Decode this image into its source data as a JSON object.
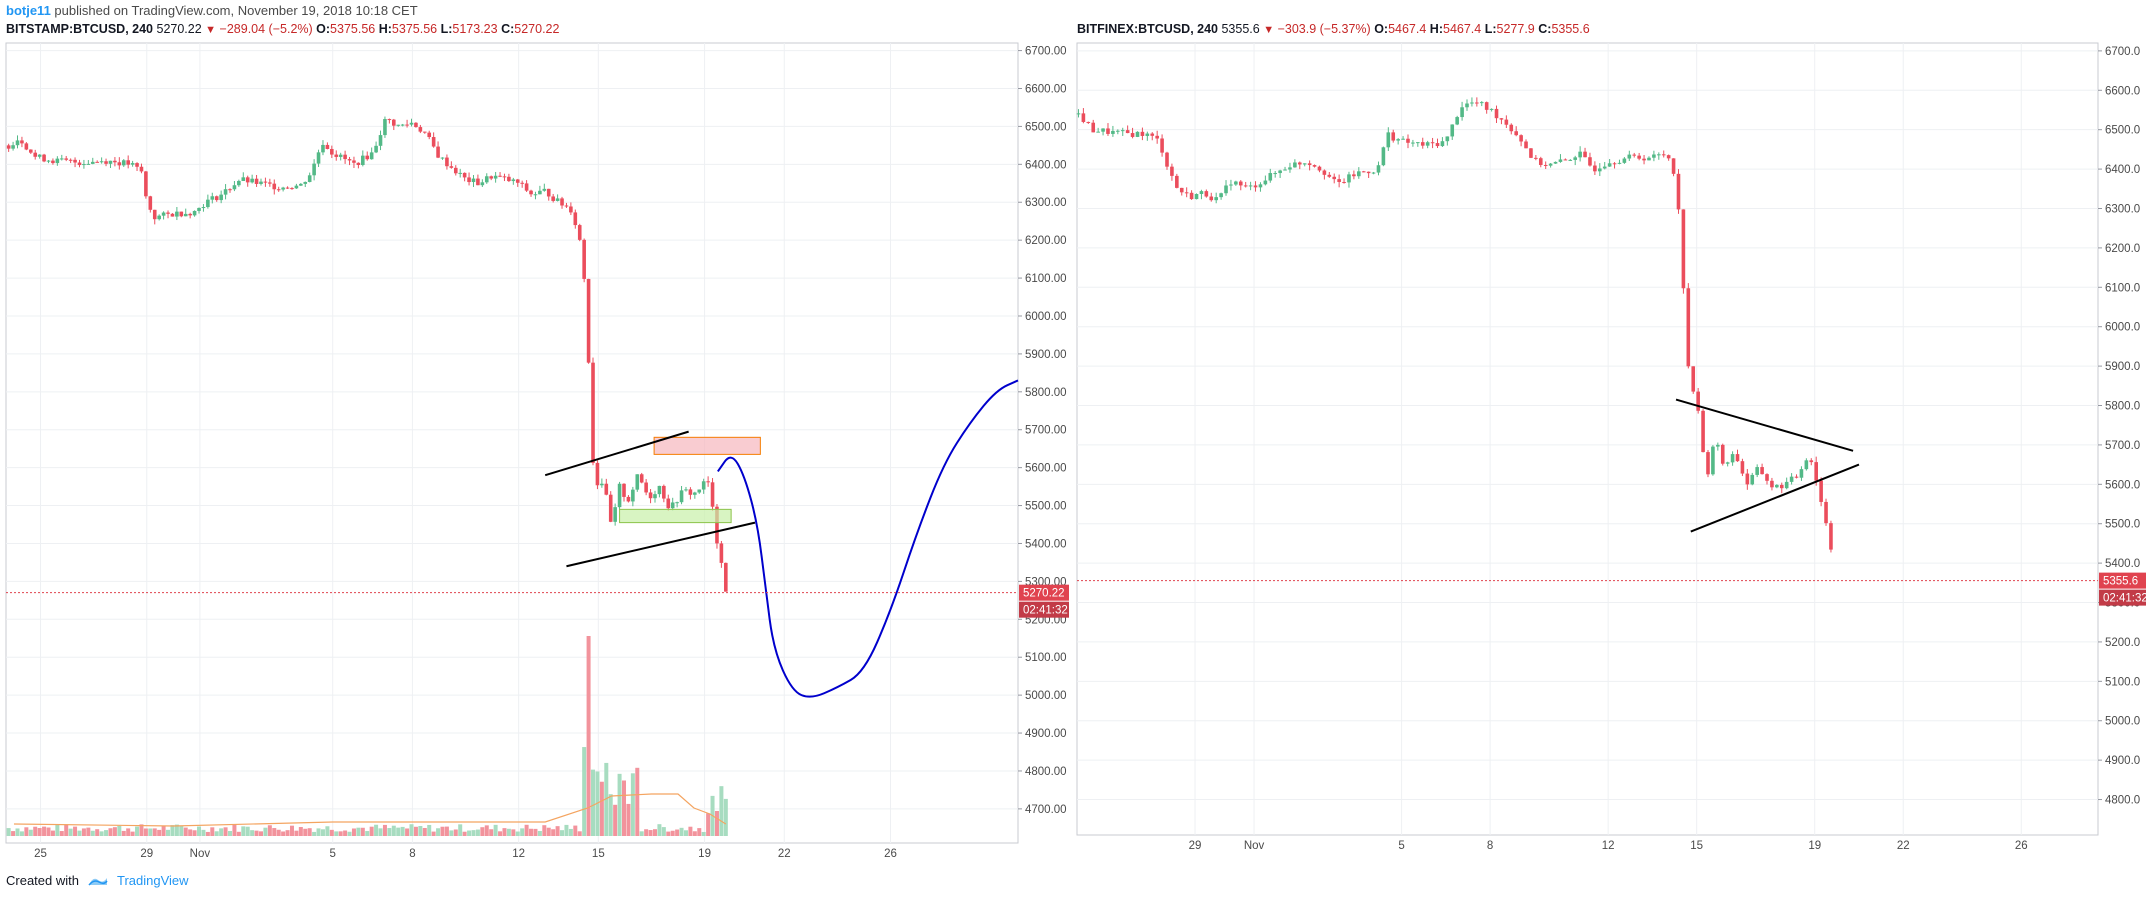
{
  "publish": {
    "author": "botje11",
    "text": " published on TradingView.com, November 19, 2018 10:18 CET"
  },
  "footer": {
    "created_with": "Created with",
    "brand": "TradingView"
  },
  "colors": {
    "up": "#53b987",
    "down": "#eb4d5c",
    "grid": "#eef0f3",
    "axis_text": "#4a4a4a",
    "pattern_line": "#000000",
    "projection": "#0000cc",
    "price_label_bg": "#e0434f",
    "volume_ma": "#f4a460",
    "zone_red_fill": "#f7b6bd",
    "zone_red_border": "#f57c00",
    "zone_green_fill": "#c8f0a8",
    "zone_green_border": "#8bc34a"
  },
  "chart_data": [
    {
      "type": "candlestick",
      "header": {
        "symbol": "BITSTAMP:BTCUSD, 240",
        "last": "5270.22",
        "arrow": "▼",
        "change": "−289.04 (−5.2%)",
        "o_label": "O:",
        "o": "5375.56",
        "h_label": "H:",
        "h": "5375.56",
        "l_label": "L:",
        "l": "5173.23",
        "c_label": "C:",
        "c": "5270.22"
      },
      "y_ticks": [
        "6700.00",
        "6600.00",
        "6500.00",
        "6400.00",
        "6300.00",
        "6200.00",
        "6100.00",
        "6000.00",
        "5900.00",
        "5800.00",
        "5700.00",
        "5600.00",
        "5500.00",
        "5400.00",
        "5300.00",
        "5200.00",
        "5100.00",
        "5000.00",
        "4900.00",
        "4800.00",
        "4700.00"
      ],
      "x_ticks": [
        {
          "label": "25",
          "day": 25
        },
        {
          "label": "29",
          "day": 29
        },
        {
          "label": "Nov",
          "day": 31
        },
        {
          "label": "5",
          "day": 36
        },
        {
          "label": "8",
          "day": 39
        },
        {
          "label": "12",
          "day": 43
        },
        {
          "label": "15",
          "day": 46
        },
        {
          "label": "19",
          "day": 50
        },
        {
          "label": "22",
          "day": 53
        },
        {
          "label": "26",
          "day": 57
        }
      ],
      "x_range": [
        23.7,
        61.8
      ],
      "ylim": [
        4610,
        6720
      ],
      "last_price_label": "5270.22",
      "countdown_label": "02:41:32",
      "last_price": 5270.22,
      "price_path": [
        [
          23.8,
          6450
        ],
        [
          24.2,
          6470
        ],
        [
          24.8,
          6420
        ],
        [
          25.5,
          6410
        ],
        [
          26.5,
          6405
        ],
        [
          27.5,
          6410
        ],
        [
          28.4,
          6400
        ],
        [
          28.8,
          6380
        ],
        [
          29.0,
          6300
        ],
        [
          29.3,
          6260
        ],
        [
          30.0,
          6270
        ],
        [
          30.8,
          6275
        ],
        [
          31.2,
          6300
        ],
        [
          31.8,
          6320
        ],
        [
          32.5,
          6360
        ],
        [
          33.2,
          6350
        ],
        [
          34.0,
          6340
        ],
        [
          34.8,
          6345
        ],
        [
          35.2,
          6380
        ],
        [
          35.6,
          6460
        ],
        [
          36.0,
          6430
        ],
        [
          36.8,
          6400
        ],
        [
          37.5,
          6430
        ],
        [
          38.0,
          6520
        ],
        [
          38.5,
          6500
        ],
        [
          39.0,
          6510
        ],
        [
          39.5,
          6480
        ],
        [
          40.0,
          6420
        ],
        [
          40.5,
          6390
        ],
        [
          41.0,
          6360
        ],
        [
          41.5,
          6350
        ],
        [
          42.0,
          6370
        ],
        [
          42.5,
          6360
        ],
        [
          43.0,
          6350
        ],
        [
          43.5,
          6320
        ],
        [
          44.0,
          6330
        ],
        [
          44.5,
          6300
        ],
        [
          45.0,
          6280
        ],
        [
          45.3,
          6200
        ],
        [
          45.55,
          6050
        ],
        [
          45.7,
          5750
        ],
        [
          45.85,
          5550
        ],
        [
          46.1,
          5570
        ],
        [
          46.3,
          5520
        ],
        [
          46.5,
          5440
        ],
        [
          46.8,
          5550
        ],
        [
          47.1,
          5510
        ],
        [
          47.5,
          5580
        ],
        [
          47.9,
          5520
        ],
        [
          48.3,
          5550
        ],
        [
          48.7,
          5490
        ],
        [
          49.2,
          5540
        ],
        [
          49.6,
          5530
        ],
        [
          50.0,
          5560
        ],
        [
          50.2,
          5560
        ],
        [
          50.4,
          5420
        ],
        [
          50.6,
          5375
        ],
        [
          50.8,
          5270
        ]
      ],
      "volume": {
        "note": "relative volume bars",
        "max_spike_day": 45.6
      },
      "pattern_lines": [
        {
          "x1": 44.0,
          "y1": 5580,
          "x2": 49.4,
          "y2": 5695
        },
        {
          "x1": 44.8,
          "y1": 5340,
          "x2": 51.9,
          "y2": 5455
        }
      ],
      "zones": [
        {
          "kind": "resistance",
          "x1": 48.1,
          "x2": 52.1,
          "y1": 5635,
          "y2": 5680
        },
        {
          "kind": "support",
          "x1": 46.8,
          "x2": 51.0,
          "y1": 5455,
          "y2": 5490
        }
      ],
      "projection": [
        [
          50.5,
          5590
        ],
        [
          51.0,
          5640
        ],
        [
          51.5,
          5580
        ],
        [
          52.0,
          5450
        ],
        [
          52.3,
          5280
        ],
        [
          52.6,
          5120
        ],
        [
          53.3,
          5010
        ],
        [
          54.0,
          4990
        ],
        [
          55.0,
          5020
        ],
        [
          56.0,
          5060
        ],
        [
          57.0,
          5220
        ],
        [
          58.0,
          5430
        ],
        [
          59.0,
          5610
        ],
        [
          60.0,
          5720
        ],
        [
          61.0,
          5805
        ],
        [
          61.8,
          5830
        ]
      ]
    },
    {
      "type": "candlestick",
      "header": {
        "symbol": "BITFINEX:BTCUSD, 240",
        "last": "5355.6",
        "arrow": "▼",
        "change": "−303.9 (−5.37%)",
        "o_label": "O:",
        "o": "5467.4",
        "h_label": "H:",
        "h": "5467.4",
        "l_label": "L:",
        "l": "5277.9",
        "c_label": "C:",
        "c": "5355.6"
      },
      "y_ticks": [
        "6700.0",
        "6600.0",
        "6500.0",
        "6400.0",
        "6300.0",
        "6200.0",
        "6100.0",
        "6000.0",
        "5900.0",
        "5800.0",
        "5700.0",
        "5600.0",
        "5500.0",
        "5400.0",
        "5300.0",
        "5200.0",
        "5100.0",
        "5000.0",
        "4900.0",
        "4800.0"
      ],
      "x_ticks": [
        {
          "label": "29",
          "day": 29
        },
        {
          "label": "Nov",
          "day": 31
        },
        {
          "label": "5",
          "day": 36
        },
        {
          "label": "8",
          "day": 39
        },
        {
          "label": "12",
          "day": 43
        },
        {
          "label": "15",
          "day": 46
        },
        {
          "label": "19",
          "day": 50
        },
        {
          "label": "22",
          "day": 53
        },
        {
          "label": "26",
          "day": 57
        }
      ],
      "x_range": [
        25.0,
        59.6
      ],
      "ylim": [
        4710,
        6720
      ],
      "last_price_label": "5355.6",
      "countdown_label": "02:41:32",
      "last_price": 5355.6,
      "price_path": [
        [
          25.05,
          6540
        ],
        [
          25.5,
          6500
        ],
        [
          26.5,
          6490
        ],
        [
          27.3,
          6490
        ],
        [
          27.8,
          6470
        ],
        [
          28.0,
          6420
        ],
        [
          28.4,
          6350
        ],
        [
          28.8,
          6330
        ],
        [
          29.3,
          6340
        ],
        [
          29.8,
          6320
        ],
        [
          30.2,
          6370
        ],
        [
          30.8,
          6350
        ],
        [
          31.5,
          6380
        ],
        [
          32.2,
          6410
        ],
        [
          32.8,
          6420
        ],
        [
          33.3,
          6400
        ],
        [
          33.8,
          6360
        ],
        [
          34.5,
          6390
        ],
        [
          35.2,
          6400
        ],
        [
          35.5,
          6490
        ],
        [
          36.0,
          6470
        ],
        [
          36.8,
          6460
        ],
        [
          37.5,
          6470
        ],
        [
          38.0,
          6560
        ],
        [
          38.5,
          6570
        ],
        [
          39.0,
          6550
        ],
        [
          39.5,
          6520
        ],
        [
          40.0,
          6480
        ],
        [
          40.5,
          6420
        ],
        [
          41.0,
          6410
        ],
        [
          41.5,
          6420
        ],
        [
          42.0,
          6440
        ],
        [
          42.5,
          6400
        ],
        [
          43.0,
          6420
        ],
        [
          43.8,
          6430
        ],
        [
          44.5,
          6430
        ],
        [
          45.0,
          6440
        ],
        [
          45.3,
          6380
        ],
        [
          45.5,
          6170
        ],
        [
          45.7,
          5910
        ],
        [
          45.9,
          5820
        ],
        [
          46.1,
          5780
        ],
        [
          46.3,
          5600
        ],
        [
          46.6,
          5720
        ],
        [
          46.9,
          5650
        ],
        [
          47.3,
          5680
        ],
        [
          47.7,
          5600
        ],
        [
          48.1,
          5640
        ],
        [
          48.6,
          5590
        ],
        [
          49.0,
          5600
        ],
        [
          49.4,
          5620
        ],
        [
          49.8,
          5680
        ],
        [
          50.0,
          5630
        ],
        [
          50.2,
          5560
        ],
        [
          50.5,
          5470
        ],
        [
          50.7,
          5355
        ]
      ],
      "pattern_lines": [
        {
          "x1": 45.3,
          "y1": 5815,
          "x2": 51.3,
          "y2": 5685
        },
        {
          "x1": 45.8,
          "y1": 5480,
          "x2": 51.5,
          "y2": 5650
        }
      ]
    }
  ]
}
